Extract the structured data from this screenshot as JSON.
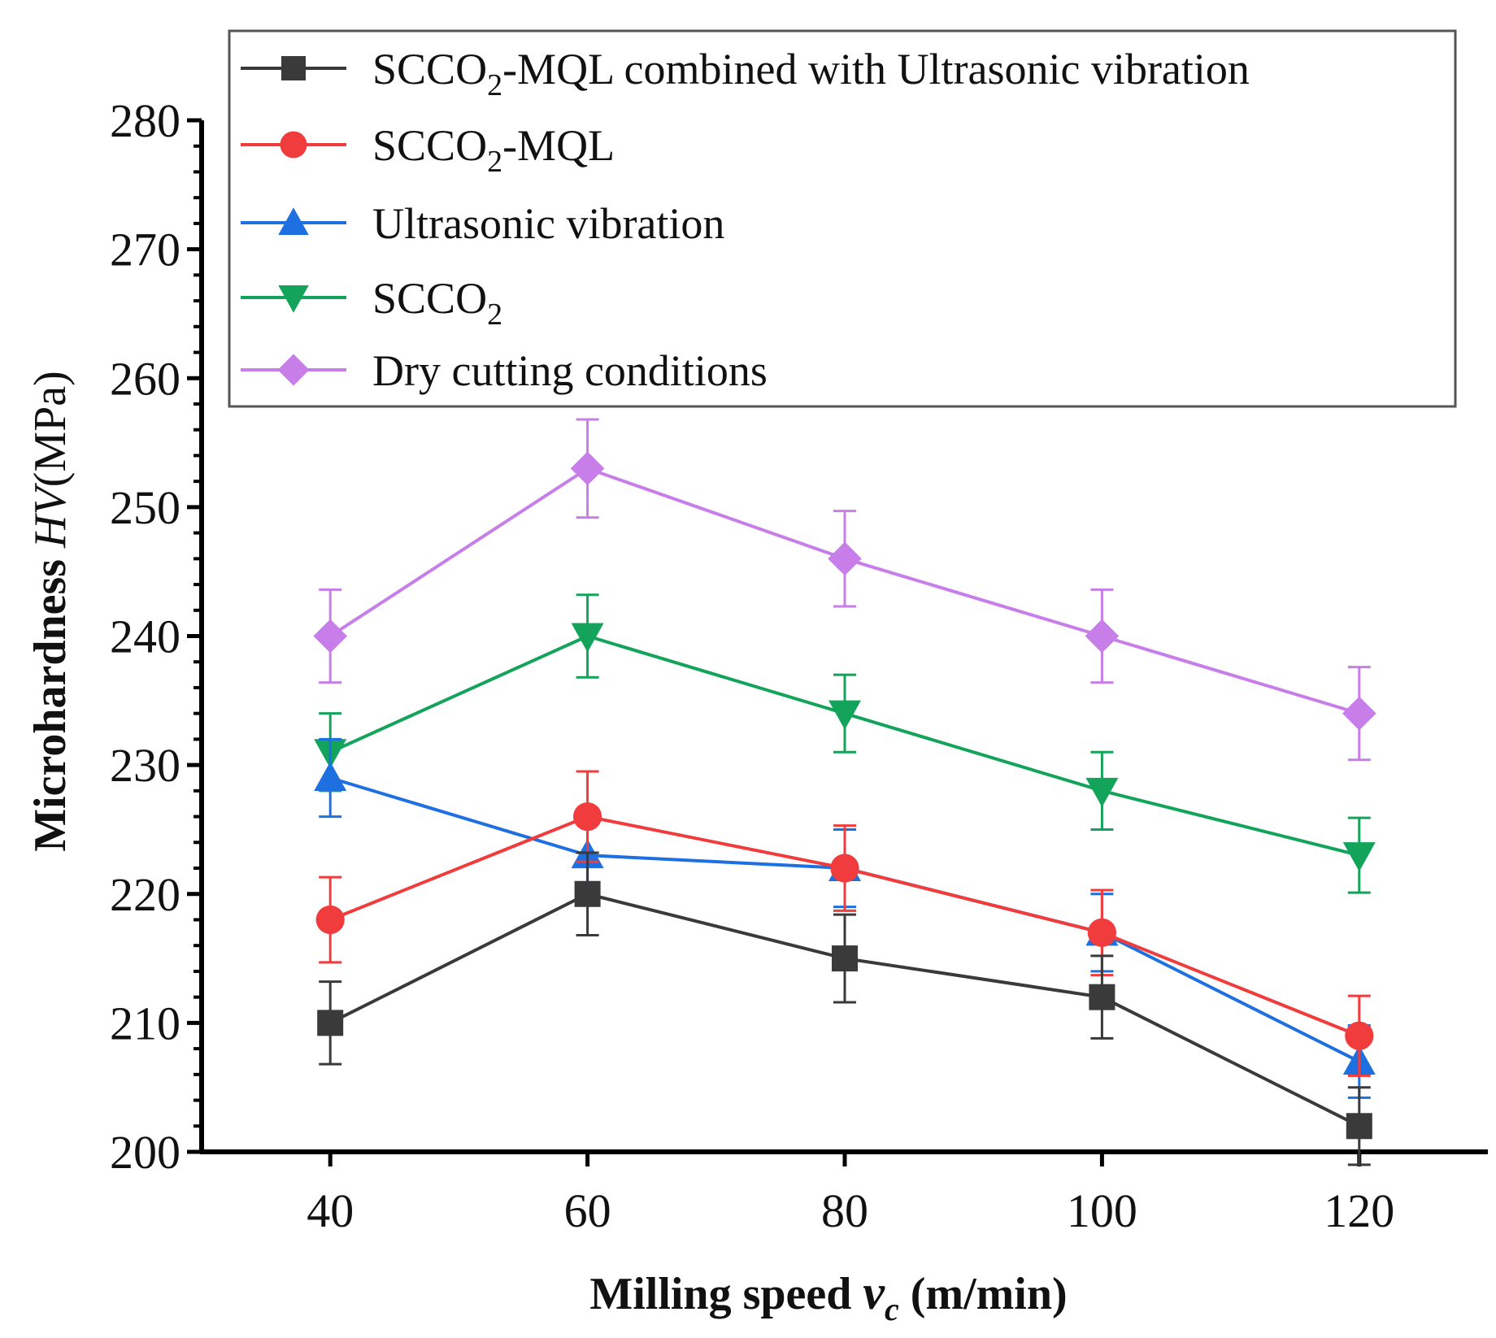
{
  "chart_data": {
    "type": "line",
    "title": "",
    "xlabel": {
      "main": "Milling speed ",
      "var": "v",
      "sub": "c",
      "unit": " (m/min)"
    },
    "ylabel": {
      "main": "Microhardness ",
      "var": "HV",
      "unit": "(MPa)"
    },
    "x": [
      40,
      60,
      80,
      100,
      120
    ],
    "xticks": [
      "40",
      "60",
      "80",
      "100",
      "120"
    ],
    "xlim": [
      30,
      130
    ],
    "ylim": [
      200,
      280
    ],
    "yticks": [
      "200",
      "210",
      "220",
      "230",
      "240",
      "250",
      "260",
      "270",
      "280"
    ],
    "grid": false,
    "legend_position": "top",
    "series": [
      {
        "name": "SCCO2-MQL combined with Ultrasonic vibration",
        "label_parts": [
          "SCCO",
          "2",
          "-MQL combined with Ultrasonic vibration"
        ],
        "color": "#3a3a3a",
        "marker": "square",
        "values": [
          210,
          220,
          215,
          212,
          202
        ],
        "errors": [
          3.2,
          3.2,
          3.4,
          3.2,
          3.0
        ]
      },
      {
        "name": "SCCO2-MQL",
        "label_parts": [
          "SCCO",
          "2",
          "-MQL"
        ],
        "color": "#f03c3c",
        "marker": "circle",
        "values": [
          218,
          226,
          222,
          217,
          209
        ],
        "errors": [
          3.3,
          3.5,
          3.3,
          3.3,
          3.1
        ]
      },
      {
        "name": "Ultrasonic vibration",
        "label_parts": [
          "Ultrasonic vibration",
          "",
          ""
        ],
        "color": "#1e6fe0",
        "marker": "triangle-up",
        "values": [
          229,
          223,
          222,
          217,
          207
        ],
        "errors": [
          3.0,
          3.0,
          3.0,
          3.0,
          2.8
        ]
      },
      {
        "name": "SCCO2",
        "label_parts": [
          "SCCO",
          "2",
          ""
        ],
        "color": "#14a35a",
        "marker": "triangle-down",
        "values": [
          231,
          240,
          234,
          228,
          223
        ],
        "errors": [
          3.0,
          3.2,
          3.0,
          3.0,
          2.9
        ]
      },
      {
        "name": "Dry cutting conditions",
        "label_parts": [
          "Dry cutting conditions",
          "",
          ""
        ],
        "color": "#c77ee8",
        "marker": "diamond",
        "values": [
          240,
          253,
          246,
          240,
          234
        ],
        "errors": [
          3.6,
          3.8,
          3.7,
          3.6,
          3.6
        ]
      }
    ]
  }
}
